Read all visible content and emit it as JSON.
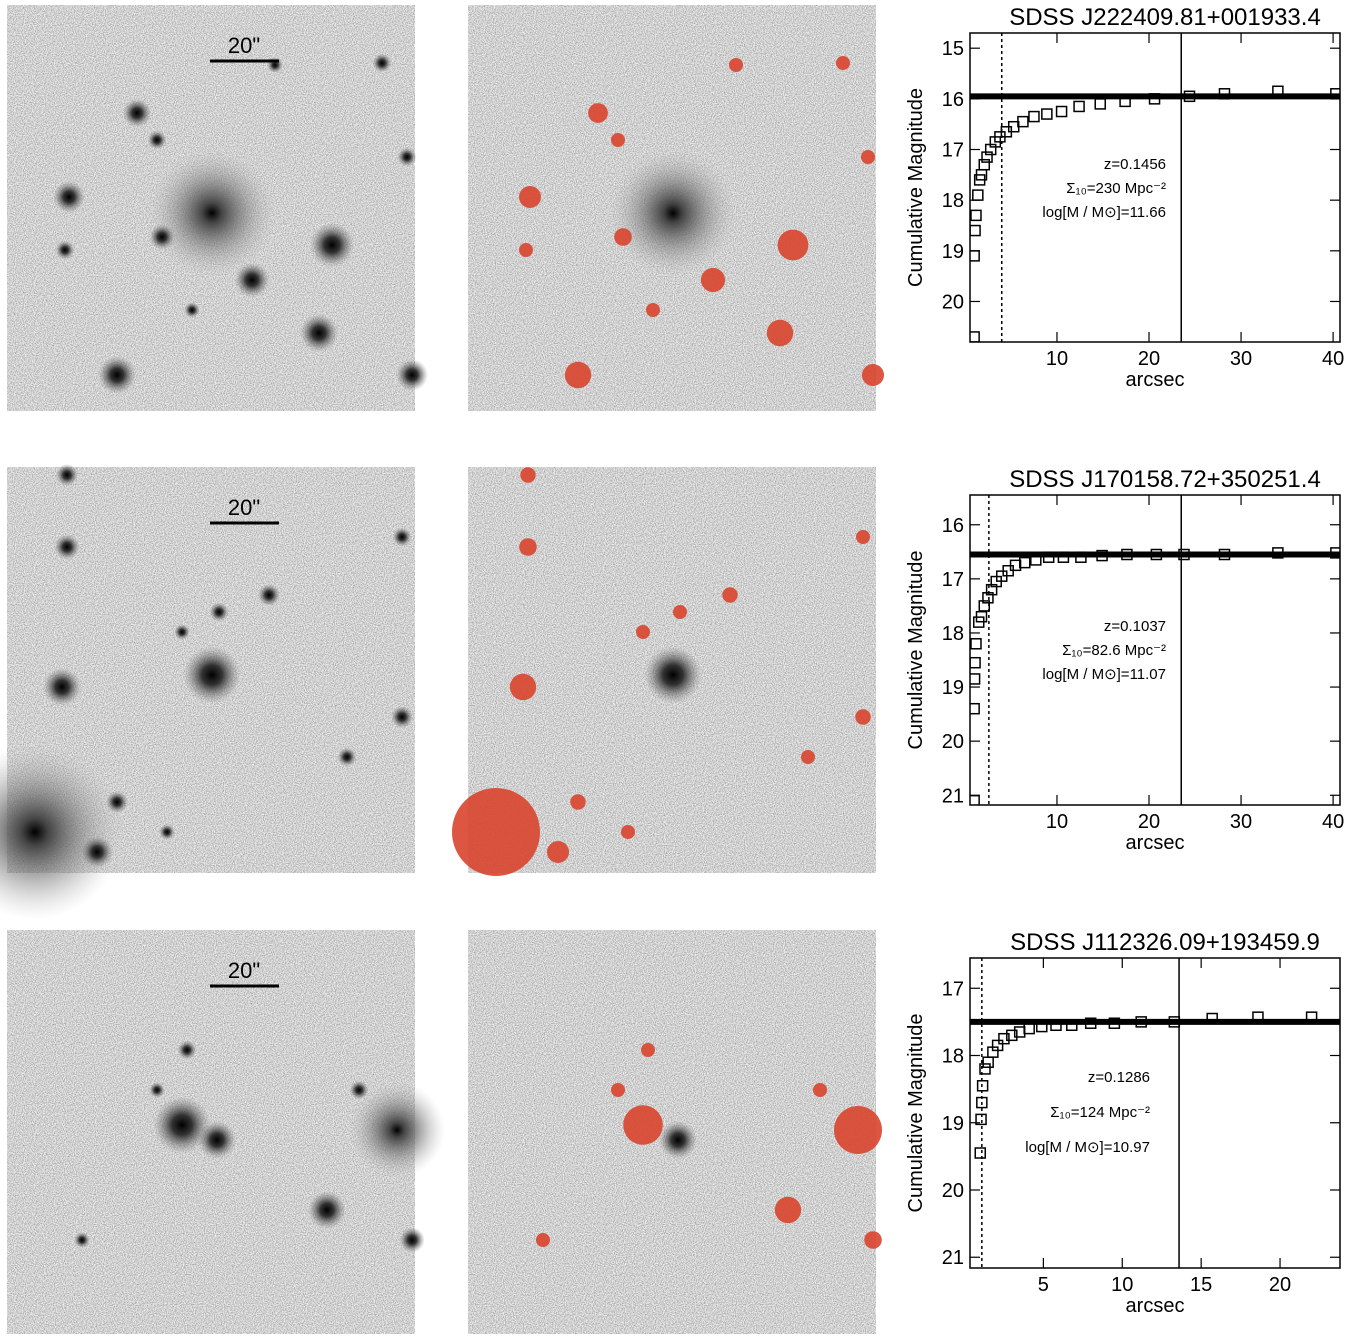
{
  "scale_bars": [
    "20\"",
    "20\"",
    "20\""
  ],
  "chart_data": [
    {
      "type": "scatter",
      "title": "SDSS J222409.81+001933.4",
      "x_label": "arcsec",
      "y_label": "Cumulative Magnitude",
      "annotations": [
        "z=0.1456",
        "Σ₁₀=230 Mpc⁻²",
        "log[M / M⊙]=11.66"
      ],
      "x": [
        1.0,
        1.0,
        1.1,
        1.2,
        1.4,
        1.6,
        1.8,
        2.1,
        2.4,
        2.8,
        3.3,
        3.8,
        4.5,
        5.3,
        6.3,
        7.5,
        8.9,
        10.5,
        12.4,
        14.7,
        17.4,
        20.6,
        24.4,
        28.2,
        34.0,
        40.3
      ],
      "values": [
        20.7,
        19.1,
        18.6,
        18.3,
        17.9,
        17.6,
        17.5,
        17.3,
        17.15,
        17.0,
        16.85,
        16.75,
        16.65,
        16.55,
        16.45,
        16.35,
        16.3,
        16.25,
        16.15,
        16.1,
        16.05,
        16.0,
        15.95,
        15.9,
        15.85,
        15.9
      ],
      "color": "#000000",
      "reference_lines": {
        "magnitude": 15.95,
        "outer_radius": 23.5,
        "inner_radius": 4.0
      },
      "xlim": [
        0.55,
        40.75
      ],
      "xticks": [
        10,
        20,
        30,
        40
      ],
      "ylim": [
        20.8,
        14.7
      ],
      "yticks": [
        15,
        16,
        17,
        18,
        19,
        20
      ]
    },
    {
      "type": "scatter",
      "title": "SDSS J170158.72+350251.4",
      "x_label": "arcsec",
      "y_label": "Cumulative Magnitude",
      "annotations": [
        "z=0.1037",
        "Σ₁₀=82.6 Mpc⁻²",
        "log[M / M⊙]=11.07"
      ],
      "x": [
        1.0,
        1.0,
        1.05,
        1.1,
        1.2,
        1.5,
        1.8,
        2.1,
        2.5,
        2.9,
        3.4,
        4.0,
        4.7,
        5.5,
        6.5,
        7.7,
        9.1,
        10.7,
        12.6,
        14.9,
        17.6,
        20.8,
        23.8,
        28.2,
        34.0,
        40.3
      ],
      "values": [
        21.1,
        19.4,
        18.85,
        18.55,
        18.2,
        17.8,
        17.7,
        17.5,
        17.35,
        17.2,
        17.05,
        16.95,
        16.85,
        16.75,
        16.7,
        16.65,
        16.6,
        16.6,
        16.6,
        16.57,
        16.55,
        16.55,
        16.55,
        16.55,
        16.52,
        16.52
      ],
      "color": "#000000",
      "reference_lines": {
        "magnitude": 16.55,
        "outer_radius": 23.5,
        "inner_radius": 2.6
      },
      "xlim": [
        0.55,
        40.75
      ],
      "xticks": [
        10,
        20,
        30,
        40
      ],
      "ylim": [
        21.18,
        15.45
      ],
      "yticks": [
        16,
        17,
        18,
        19,
        20,
        21
      ]
    },
    {
      "type": "scatter",
      "title": "SDSS J112326.09+193459.9",
      "x_label": "arcsec",
      "y_label": "Cumulative Magnitude",
      "annotations": [
        "z=0.1286",
        "Σ₁₀=124 Mpc⁻²",
        "log[M / M⊙]=10.97"
      ],
      "x": [
        1.0,
        1.05,
        1.1,
        1.15,
        1.3,
        1.5,
        1.8,
        2.1,
        2.5,
        3.0,
        3.5,
        4.1,
        4.9,
        5.8,
        6.8,
        8.0,
        9.5,
        11.2,
        13.3,
        15.7,
        18.6,
        22.0
      ],
      "values": [
        19.45,
        18.95,
        18.7,
        18.45,
        18.2,
        18.1,
        17.95,
        17.85,
        17.75,
        17.7,
        17.65,
        17.6,
        17.57,
        17.55,
        17.55,
        17.52,
        17.52,
        17.5,
        17.5,
        17.45,
        17.43,
        17.43
      ],
      "color": "#000000",
      "reference_lines": {
        "magnitude": 17.5,
        "outer_radius": 13.6,
        "inner_radius": 1.1
      },
      "xlim": [
        0.35,
        23.8
      ],
      "xticks": [
        5,
        10,
        15,
        20
      ],
      "ylim": [
        21.16,
        16.55
      ],
      "yticks": [
        17,
        18,
        19,
        20,
        21
      ]
    }
  ]
}
